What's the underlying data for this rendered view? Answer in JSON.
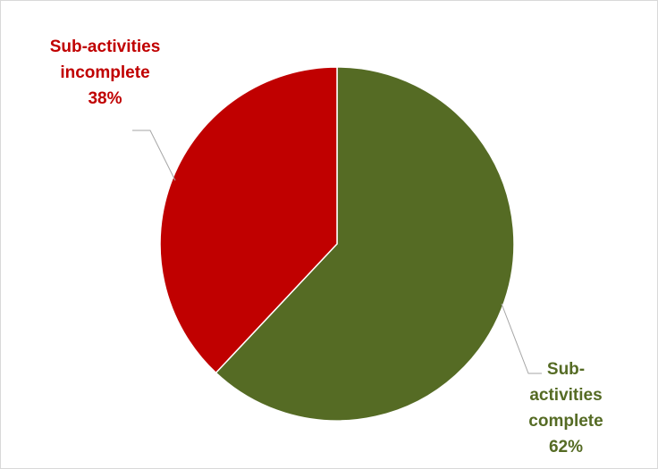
{
  "chart_data": {
    "type": "pie",
    "slices": [
      {
        "label_lines": [
          "Sub-activities",
          "incomplete"
        ],
        "percent_text": "38%",
        "value": 38,
        "color": "#c00000"
      },
      {
        "label_lines": [
          "Sub-",
          "activities",
          "complete"
        ],
        "percent_text": "62%",
        "value": 62,
        "color": "#556b24"
      }
    ],
    "legend": "none",
    "grid": false
  }
}
